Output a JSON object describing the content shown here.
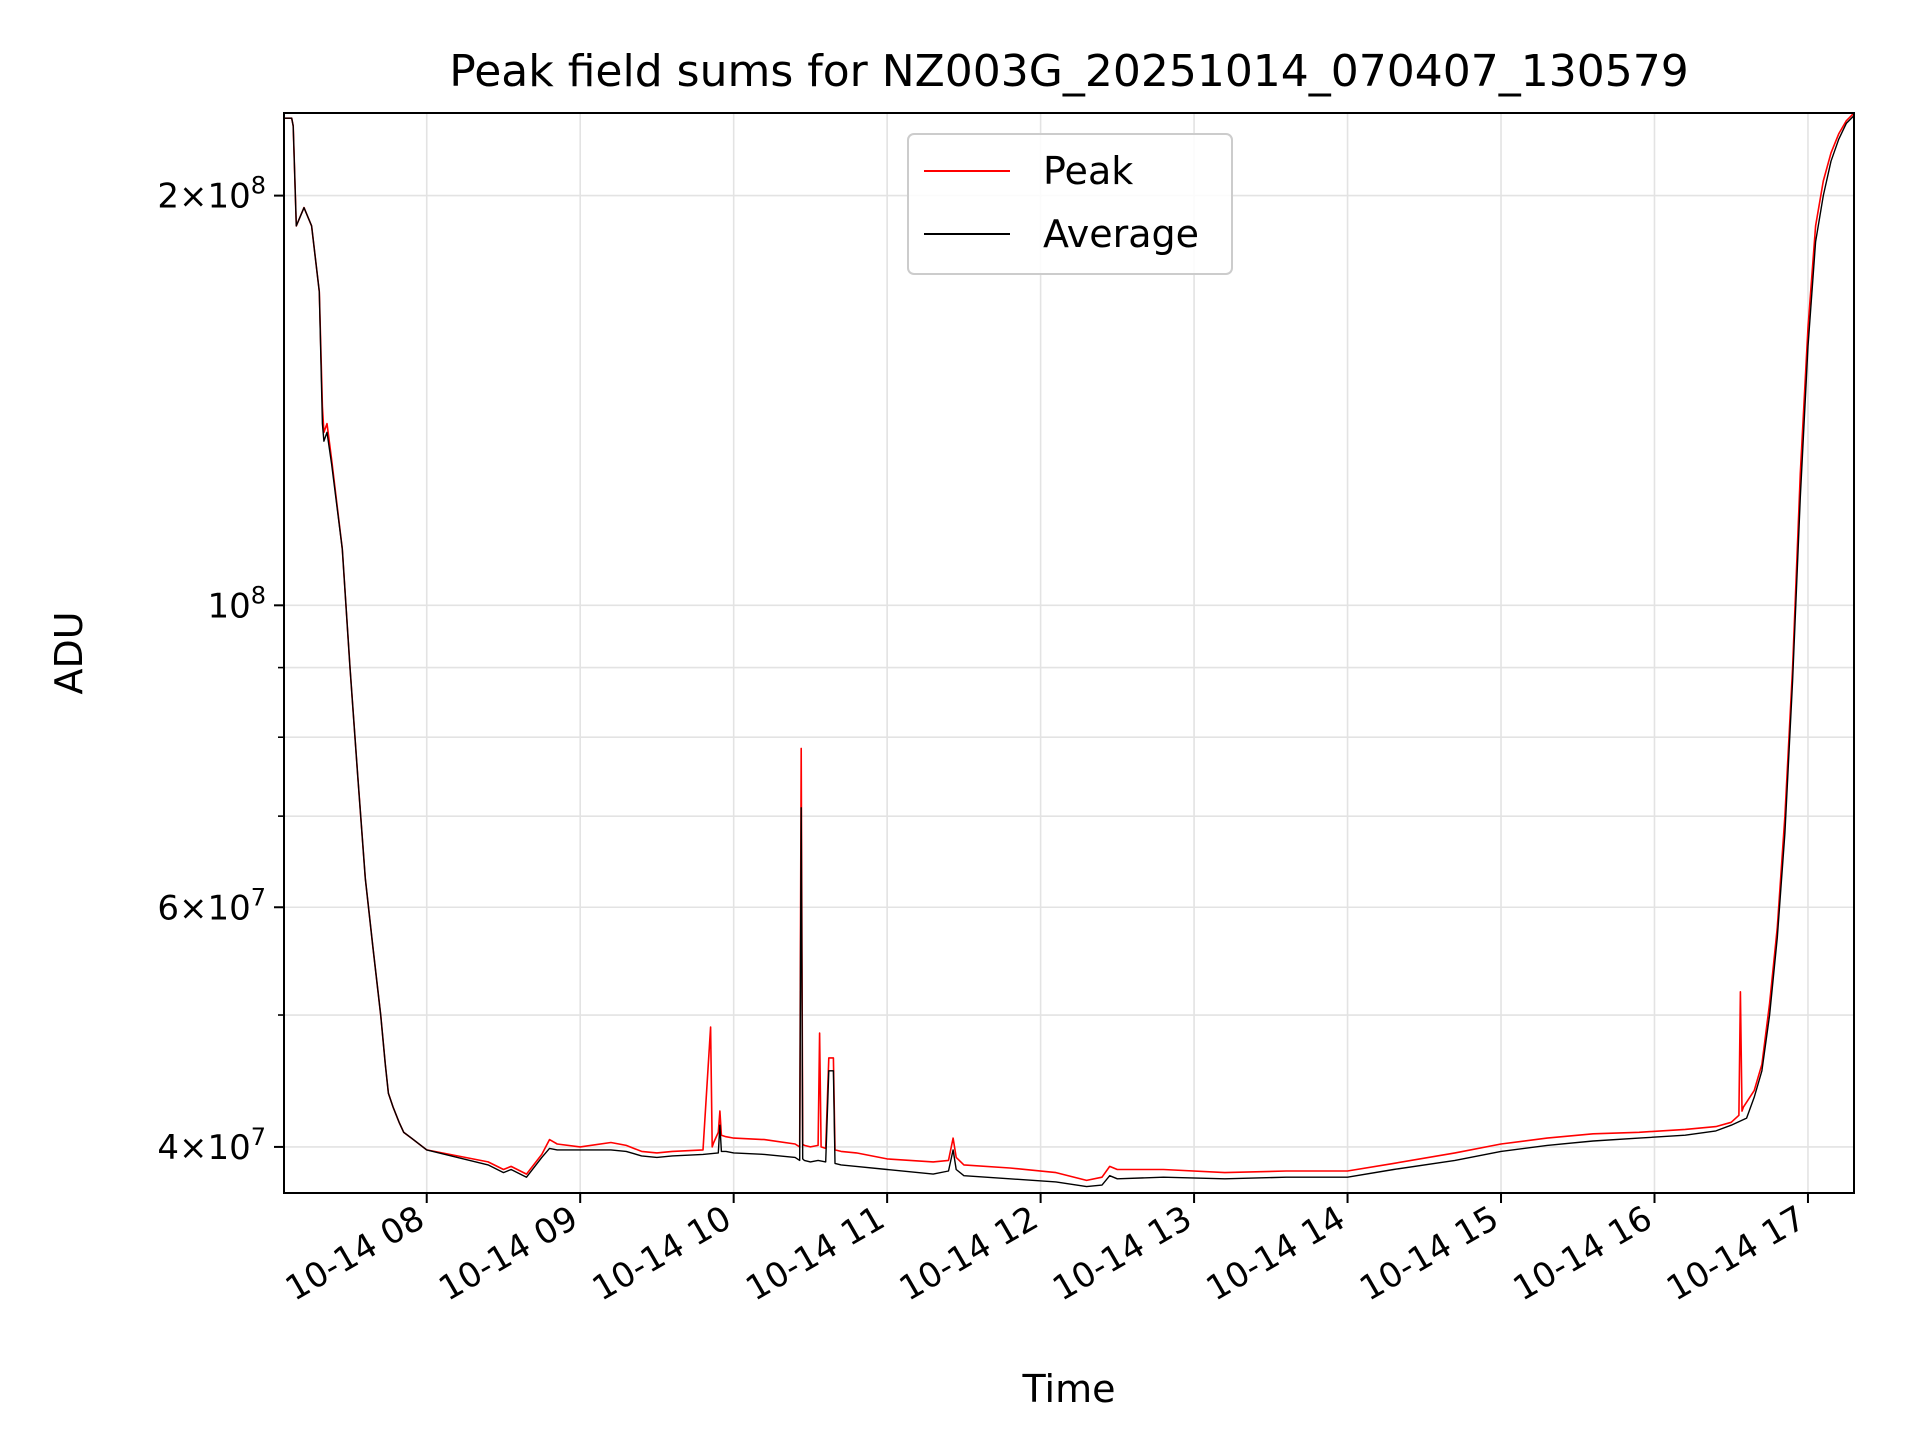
{
  "chart_data": {
    "type": "line",
    "title": "Peak field sums for NZ003G_20251014_070407_130579",
    "xlabel": "Time",
    "ylabel": "ADU",
    "yscale": "log",
    "ylim": [
      37000000,
      230000000
    ],
    "xlim_hours": [
      7.07,
      17.3
    ],
    "grid": true,
    "legend_position": "top-center",
    "x_ticks": [
      {
        "hour": 8,
        "label": "10-14 08"
      },
      {
        "hour": 9,
        "label": "10-14 09"
      },
      {
        "hour": 10,
        "label": "10-14 10"
      },
      {
        "hour": 11,
        "label": "10-14 11"
      },
      {
        "hour": 12,
        "label": "10-14 12"
      },
      {
        "hour": 13,
        "label": "10-14 13"
      },
      {
        "hour": 14,
        "label": "10-14 14"
      },
      {
        "hour": 15,
        "label": "10-14 15"
      },
      {
        "hour": 16,
        "label": "10-14 16"
      },
      {
        "hour": 17,
        "label": "10-14 17"
      }
    ],
    "y_ticks": [
      {
        "value": 40000000,
        "mantissa": "4",
        "exponent": "7"
      },
      {
        "value": 60000000,
        "mantissa": "6",
        "exponent": "7"
      },
      {
        "value": 100000000,
        "mantissa": "",
        "exponent": "8"
      },
      {
        "value": 200000000,
        "mantissa": "2",
        "exponent": "8"
      }
    ],
    "y_minor_ticks": [
      50000000,
      70000000,
      80000000,
      90000000
    ],
    "series": [
      {
        "name": "Peak",
        "color": "#ff0000",
        "x_hours": [
          7.07,
          7.12,
          7.13,
          7.15,
          7.2,
          7.25,
          7.3,
          7.32,
          7.33,
          7.35,
          7.38,
          7.45,
          7.5,
          7.55,
          7.6,
          7.65,
          7.7,
          7.73,
          7.75,
          7.78,
          7.82,
          7.85,
          7.9,
          8.0,
          8.2,
          8.4,
          8.5,
          8.55,
          8.65,
          8.75,
          8.8,
          8.85,
          9.0,
          9.2,
          9.3,
          9.4,
          9.5,
          9.6,
          9.8,
          9.85,
          9.86,
          9.87,
          9.9,
          9.91,
          9.92,
          9.95,
          10.0,
          10.2,
          10.4,
          10.43,
          10.44,
          10.45,
          10.46,
          10.5,
          10.55,
          10.56,
          10.57,
          10.6,
          10.62,
          10.63,
          10.65,
          10.66,
          10.7,
          10.8,
          11.0,
          11.3,
          11.4,
          11.43,
          11.45,
          11.5,
          11.8,
          12.1,
          12.3,
          12.4,
          12.45,
          12.5,
          12.8,
          13.2,
          13.6,
          14.0,
          14.3,
          14.7,
          15.0,
          15.3,
          15.6,
          15.9,
          16.2,
          16.4,
          16.5,
          16.55,
          16.56,
          16.57,
          16.58,
          16.65,
          16.7,
          16.75,
          16.8,
          16.85,
          16.9,
          16.95,
          17.0,
          17.05,
          17.1,
          17.15,
          17.2,
          17.25,
          17.3
        ],
        "values": [
          228000000,
          228000000,
          225000000,
          190000000,
          196000000,
          190000000,
          170000000,
          140000000,
          134000000,
          136000000,
          128000000,
          110000000,
          90000000,
          75000000,
          63000000,
          56000000,
          50000000,
          46000000,
          43800000,
          42800000,
          41700000,
          41000000,
          40600000,
          39800000,
          39400000,
          39000000,
          38500000,
          38700000,
          38200000,
          39500000,
          40500000,
          40200000,
          40000000,
          40300000,
          40100000,
          39700000,
          39600000,
          39700000,
          39800000,
          49000000,
          40000000,
          40300000,
          41000000,
          42500000,
          40800000,
          40700000,
          40600000,
          40500000,
          40200000,
          40000000,
          78500000,
          40200000,
          40100000,
          40000000,
          40100000,
          48500000,
          40000000,
          39900000,
          46500000,
          46500000,
          46500000,
          39800000,
          39700000,
          39600000,
          39200000,
          39000000,
          39100000,
          40600000,
          39300000,
          38800000,
          38600000,
          38300000,
          37800000,
          38000000,
          38700000,
          38500000,
          38500000,
          38300000,
          38400000,
          38400000,
          38900000,
          39600000,
          40200000,
          40600000,
          40900000,
          41000000,
          41200000,
          41400000,
          41700000,
          42200000,
          52000000,
          42500000,
          42800000,
          44000000,
          46000000,
          51000000,
          58000000,
          70000000,
          90000000,
          125000000,
          160000000,
          190000000,
          205000000,
          215000000,
          222000000,
          227000000,
          230000000
        ]
      },
      {
        "name": "Average",
        "color": "#000000",
        "x_hours": [
          7.07,
          7.12,
          7.13,
          7.15,
          7.2,
          7.25,
          7.3,
          7.32,
          7.33,
          7.35,
          7.38,
          7.45,
          7.5,
          7.55,
          7.6,
          7.65,
          7.7,
          7.73,
          7.75,
          7.78,
          7.82,
          7.85,
          7.9,
          8.0,
          8.2,
          8.4,
          8.5,
          8.55,
          8.65,
          8.75,
          8.8,
          8.85,
          9.0,
          9.2,
          9.3,
          9.4,
          9.5,
          9.6,
          9.8,
          9.9,
          9.91,
          9.92,
          9.95,
          10.0,
          10.2,
          10.4,
          10.43,
          10.44,
          10.45,
          10.46,
          10.5,
          10.55,
          10.6,
          10.62,
          10.63,
          10.65,
          10.66,
          10.7,
          10.8,
          11.0,
          11.3,
          11.4,
          11.43,
          11.45,
          11.5,
          11.8,
          12.1,
          12.3,
          12.4,
          12.45,
          12.5,
          12.8,
          13.2,
          13.6,
          14.0,
          14.3,
          14.7,
          15.0,
          15.3,
          15.6,
          15.9,
          16.2,
          16.4,
          16.5,
          16.6,
          16.65,
          16.7,
          16.75,
          16.8,
          16.85,
          16.9,
          16.95,
          17.0,
          17.05,
          17.1,
          17.15,
          17.2,
          17.25,
          17.3
        ],
        "values": [
          228000000,
          228000000,
          225000000,
          190000000,
          196000000,
          190000000,
          170000000,
          136000000,
          132000000,
          134000000,
          127000000,
          110000000,
          90000000,
          75000000,
          63000000,
          56000000,
          50000000,
          46000000,
          43800000,
          42800000,
          41700000,
          41000000,
          40600000,
          39800000,
          39300000,
          38800000,
          38300000,
          38500000,
          38000000,
          39300000,
          39900000,
          39800000,
          39800000,
          39800000,
          39700000,
          39400000,
          39300000,
          39400000,
          39500000,
          39600000,
          41500000,
          39700000,
          39700000,
          39600000,
          39500000,
          39300000,
          39100000,
          71000000,
          39200000,
          39100000,
          39000000,
          39100000,
          39000000,
          45500000,
          45500000,
          45500000,
          38900000,
          38800000,
          38700000,
          38500000,
          38200000,
          38400000,
          39800000,
          38500000,
          38100000,
          37900000,
          37700000,
          37400000,
          37500000,
          38100000,
          37900000,
          38000000,
          37900000,
          38000000,
          38000000,
          38500000,
          39100000,
          39700000,
          40100000,
          40400000,
          40600000,
          40800000,
          41100000,
          41500000,
          42000000,
          43500000,
          45500000,
          50000000,
          57000000,
          68000000,
          88000000,
          120000000,
          155000000,
          185000000,
          200000000,
          212000000,
          220000000,
          226000000,
          229000000
        ]
      }
    ]
  }
}
